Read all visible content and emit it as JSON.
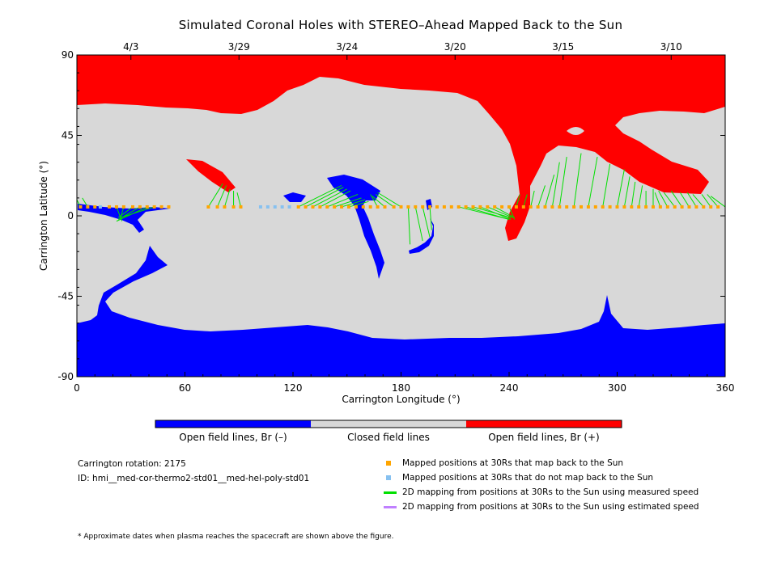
{
  "title": "Simulated Coronal Holes with STEREO–Ahead Mapped Back to the Sun",
  "chart_data": {
    "type": "heatmap",
    "xlabel": "Carrington Longitude (°)",
    "ylabel": "Carrington Latitude (°)",
    "xlim": [
      0,
      360
    ],
    "ylim": [
      -90,
      90
    ],
    "x_ticks": [
      "0",
      "60",
      "120",
      "180",
      "240",
      "300",
      "360"
    ],
    "y_ticks": [
      "90",
      "45",
      "0",
      "-45",
      "-90"
    ],
    "top_dates": [
      {
        "label": "4/3",
        "lon": 30
      },
      {
        "label": "3/29",
        "lon": 90
      },
      {
        "label": "3/24",
        "lon": 150
      },
      {
        "label": "3/20",
        "lon": 210
      },
      {
        "label": "3/15",
        "lon": 270
      },
      {
        "label": "3/10",
        "lon": 330
      }
    ],
    "colors": {
      "negative": "#0000ff",
      "closed": "#d8d8d8",
      "positive": "#ff0000",
      "mapped": "#ffa500",
      "unmapped": "#87c1f0",
      "measured": "#00e000",
      "estimated": "#c080ff"
    },
    "spacecraft_latitude": 5,
    "mapped_longitudes": [
      2,
      6,
      10,
      18,
      22,
      26,
      31,
      35,
      39,
      43,
      47,
      51,
      73,
      78,
      82,
      87,
      91,
      123,
      127,
      131,
      135,
      139,
      143,
      147,
      151,
      155,
      159,
      163,
      167,
      171,
      176,
      180,
      184,
      188,
      192,
      196,
      200,
      204,
      208,
      212,
      216,
      220,
      224,
      228,
      232,
      236,
      240,
      244,
      248,
      252,
      256,
      260,
      264,
      268,
      272,
      276,
      280,
      284,
      288,
      292,
      296,
      300,
      304,
      308,
      312,
      316,
      320,
      324,
      328,
      332,
      336,
      340,
      344,
      348,
      352,
      356
    ],
    "unmapped_longitudes": [
      13,
      102,
      106,
      110,
      114,
      118
    ],
    "measured_mappings": [
      {
        "from": 2,
        "to": [
          0,
          9
        ]
      },
      {
        "from": 6,
        "to": [
          3,
          10
        ]
      },
      {
        "from": 22,
        "to": [
          25,
          -3
        ]
      },
      {
        "from": 26,
        "to": [
          24,
          -2
        ]
      },
      {
        "from": 31,
        "to": [
          23,
          -1
        ]
      },
      {
        "from": 35,
        "to": [
          23,
          -2
        ]
      },
      {
        "from": 39,
        "to": [
          22,
          -3
        ]
      },
      {
        "from": 43,
        "to": [
          24,
          -1
        ]
      },
      {
        "from": 73,
        "to": [
          81,
          18
        ]
      },
      {
        "from": 78,
        "to": [
          83,
          17
        ]
      },
      {
        "from": 82,
        "to": [
          85,
          15
        ]
      },
      {
        "from": 87,
        "to": [
          87,
          14
        ]
      },
      {
        "from": 91,
        "to": [
          89,
          13
        ]
      },
      {
        "from": 123,
        "to": [
          147,
          17
        ]
      },
      {
        "from": 127,
        "to": [
          148,
          16
        ]
      },
      {
        "from": 131,
        "to": [
          150,
          15
        ]
      },
      {
        "from": 135,
        "to": [
          152,
          14
        ]
      },
      {
        "from": 139,
        "to": [
          156,
          12
        ]
      },
      {
        "from": 143,
        "to": [
          158,
          10
        ]
      },
      {
        "from": 147,
        "to": [
          160,
          9
        ]
      },
      {
        "from": 151,
        "to": [
          162,
          8
        ]
      },
      {
        "from": 167,
        "to": [
          163,
          12
        ]
      },
      {
        "from": 171,
        "to": [
          164,
          11
        ]
      },
      {
        "from": 176,
        "to": [
          166,
          12
        ]
      },
      {
        "from": 180,
        "to": [
          167,
          13
        ]
      },
      {
        "from": 184,
        "to": [
          185,
          -16
        ]
      },
      {
        "from": 188,
        "to": [
          192,
          -14
        ]
      },
      {
        "from": 192,
        "to": [
          196,
          -12
        ]
      },
      {
        "from": 196,
        "to": [
          197,
          -8
        ]
      },
      {
        "from": 212,
        "to": [
          240,
          -2
        ]
      },
      {
        "from": 216,
        "to": [
          240,
          -2
        ]
      },
      {
        "from": 220,
        "to": [
          241,
          -1
        ]
      },
      {
        "from": 224,
        "to": [
          241,
          -2
        ]
      },
      {
        "from": 228,
        "to": [
          242,
          -1
        ]
      },
      {
        "from": 232,
        "to": [
          243,
          -1
        ]
      },
      {
        "from": 240,
        "to": [
          243,
          -2
        ]
      },
      {
        "from": 244,
        "to": [
          246,
          12
        ]
      },
      {
        "from": 248,
        "to": [
          250,
          12
        ]
      },
      {
        "from": 252,
        "to": [
          254,
          14
        ]
      },
      {
        "from": 256,
        "to": [
          260,
          17
        ]
      },
      {
        "from": 260,
        "to": [
          265,
          23
        ]
      },
      {
        "from": 264,
        "to": [
          268,
          30
        ]
      },
      {
        "from": 268,
        "to": [
          272,
          33
        ]
      },
      {
        "from": 276,
        "to": [
          280,
          35
        ]
      },
      {
        "from": 284,
        "to": [
          289,
          33
        ]
      },
      {
        "from": 292,
        "to": [
          296,
          29
        ]
      },
      {
        "from": 300,
        "to": [
          304,
          26
        ]
      },
      {
        "from": 304,
        "to": [
          307,
          22
        ]
      },
      {
        "from": 308,
        "to": [
          310,
          19
        ]
      },
      {
        "from": 312,
        "to": [
          314,
          17
        ]
      },
      {
        "from": 316,
        "to": [
          316,
          14
        ]
      },
      {
        "from": 320,
        "to": [
          320,
          15
        ]
      },
      {
        "from": 324,
        "to": [
          321,
          13
        ]
      },
      {
        "from": 328,
        "to": [
          323,
          14
        ]
      },
      {
        "from": 332,
        "to": [
          326,
          13
        ]
      },
      {
        "from": 336,
        "to": [
          330,
          14
        ]
      },
      {
        "from": 340,
        "to": [
          335,
          13
        ]
      },
      {
        "from": 344,
        "to": [
          339,
          13
        ]
      },
      {
        "from": 348,
        "to": [
          342,
          12
        ]
      },
      {
        "from": 352,
        "to": [
          347,
          12
        ]
      },
      {
        "from": 356,
        "to": [
          350,
          12
        ]
      },
      {
        "from": 360,
        "to": [
          352,
          11
        ]
      }
    ],
    "colorbar": [
      "Open field lines, Br (–)",
      "Closed field lines",
      "Open field lines, Br (+)"
    ]
  },
  "info": {
    "rotation": "Carrington rotation: 2175",
    "id": "ID: hmi__med-cor-thermo2-std01__med-hel-poly-std01"
  },
  "legend": [
    "Mapped positions at 30Rs that map back to the Sun",
    "Mapped positions at 30Rs that do not map back to the Sun",
    "2D mapping from positions at 30Rs to the Sun using measured speed",
    "2D mapping from positions at 30Rs to the Sun using estimated speed"
  ],
  "footnote": "* Approximate dates when plasma reaches the spacecraft are shown above the figure."
}
